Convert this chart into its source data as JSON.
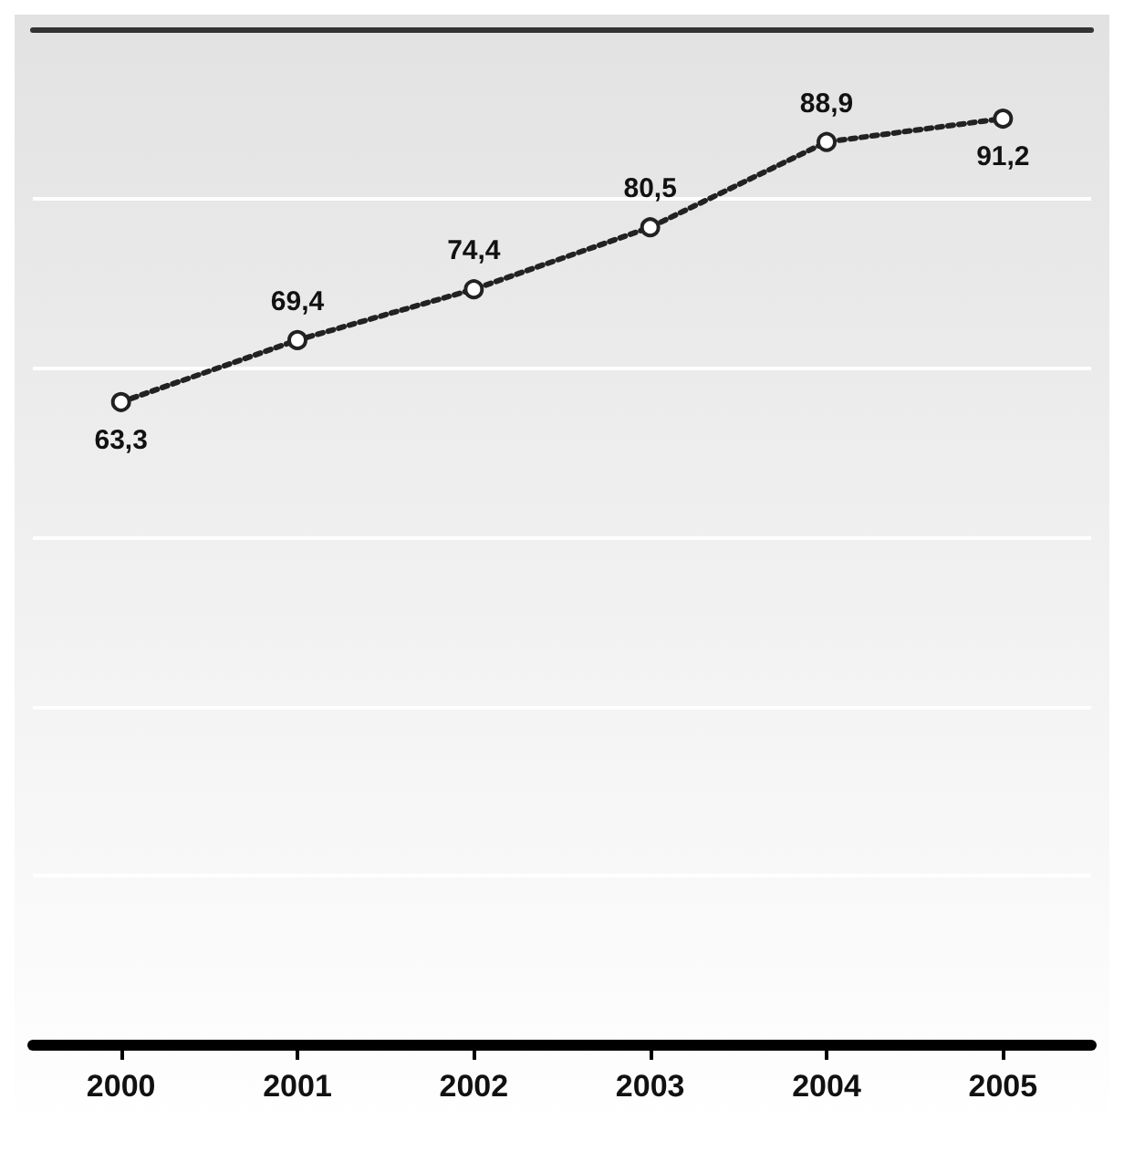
{
  "chart_data": {
    "type": "line",
    "categories": [
      "2000",
      "2001",
      "2002",
      "2003",
      "2004",
      "2005"
    ],
    "series": [
      {
        "color": "#222222",
        "values": [
          63.3,
          69.4,
          74.4,
          80.5,
          88.9,
          91.2
        ],
        "value_labels": [
          "63,3",
          "69,4",
          "74,4",
          "80,5",
          "88,9",
          "91,2"
        ]
      }
    ],
    "ylim": [
      0,
      100
    ],
    "yticks": [
      {
        "value": 16.7,
        "label": null
      },
      {
        "value": 33.3,
        "label": null
      },
      {
        "value": 50,
        "label": null
      },
      {
        "value": 66.7,
        "label": null
      },
      {
        "value": 83.3,
        "label": null
      }
    ],
    "marker": "circle",
    "line_style": "dotted",
    "grid": "y",
    "tick_labels": "x"
  }
}
